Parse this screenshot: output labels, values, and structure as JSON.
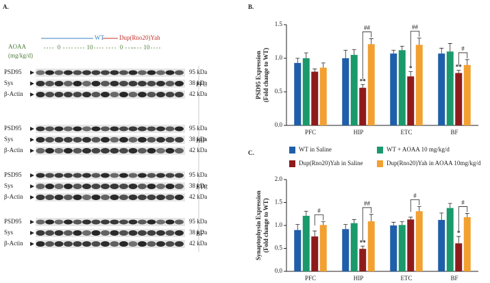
{
  "panel_labels": [
    "A.",
    "B.",
    "C."
  ],
  "blot": {
    "genotypes": [
      "WT",
      "Dup(Rno20)Yah"
    ],
    "treatment_label": "AOAA",
    "treatment_unit": "(mg/kg/d)",
    "doses": [
      "0",
      "10",
      "0",
      "10"
    ],
    "regions": [
      {
        "name": "PFC",
        "rows": [
          {
            "protein": "PSD95",
            "size": "95 kDa"
          },
          {
            "protein": "Sys",
            "size": "38 kDa"
          },
          {
            "protein": "β-Actin",
            "size": "42 kDa"
          }
        ]
      },
      {
        "name": "HIP",
        "rows": [
          {
            "protein": "PSD95",
            "size": "95 kDa"
          },
          {
            "protein": "Sys",
            "size": "38 kDa"
          },
          {
            "protein": "β-Actin",
            "size": "42 kDa"
          }
        ]
      },
      {
        "name": "ETC",
        "rows": [
          {
            "protein": "PSD95",
            "size": "95 kDa"
          },
          {
            "protein": "Sys",
            "size": "38 kDa"
          },
          {
            "protein": "β-Actin",
            "size": "42 kDa"
          }
        ]
      },
      {
        "name": "BF",
        "rows": [
          {
            "protein": "PSD95",
            "size": "95 kDa"
          },
          {
            "protein": "Sys",
            "size": "38 kDa"
          },
          {
            "protein": "β-Actin",
            "size": "42 kDa"
          }
        ]
      }
    ]
  },
  "chart_data": [
    {
      "type": "bar",
      "ylabel": [
        "PSD95 Expression",
        "(Fold change to WT)"
      ],
      "categories": [
        "PFC",
        "HIP",
        "ETC",
        "BF"
      ],
      "series": [
        {
          "color": "#1f5ea8",
          "values": [
            0.93,
            1.0,
            1.07,
            1.07
          ],
          "errors": [
            0.07,
            0.12,
            0.05,
            0.08
          ]
        },
        {
          "color": "#1a9a6c",
          "values": [
            1.0,
            1.05,
            1.12,
            1.1
          ],
          "errors": [
            0.08,
            0.08,
            0.06,
            0.12
          ]
        },
        {
          "color": "#8e1b1b",
          "values": [
            0.8,
            0.56,
            0.73,
            0.78
          ],
          "errors": [
            0.04,
            0.05,
            0.07,
            0.04
          ],
          "significance": [
            null,
            "**",
            "*",
            "**"
          ]
        },
        {
          "color": "#f2a031",
          "values": [
            0.86,
            1.21,
            1.2,
            0.9
          ],
          "errors": [
            0.07,
            0.08,
            0.1,
            0.08
          ]
        }
      ],
      "brackets": [
        null,
        "##",
        "##",
        "#"
      ],
      "ylim": [
        0,
        1.5
      ],
      "yticks": [
        {
          "value": 0,
          "label": "0.0"
        },
        0.5,
        {
          "value": 1,
          "label": "1.0"
        },
        1.5
      ]
    },
    {
      "type": "bar",
      "ylabel": [
        "Synaptophysin Expression",
        "(Fold change to WT)"
      ],
      "categories": [
        "PFC",
        "HIP",
        "ETC",
        "BF"
      ],
      "series": [
        {
          "name": "WT in Saline",
          "color": "#1f5ea8",
          "values": [
            0.9,
            0.92,
            1.0,
            1.12
          ],
          "errors": [
            0.12,
            0.1,
            0.07,
            0.15
          ]
        },
        {
          "name": "WT + AOAA 10 mg/kg/d",
          "color": "#1a9a6c",
          "values": [
            1.21,
            1.05,
            1.01,
            1.38
          ],
          "errors": [
            0.1,
            0.08,
            0.07,
            0.1
          ]
        },
        {
          "name": "Dup(Rno20)Yah in Saline",
          "color": "#8e1b1b",
          "values": [
            0.76,
            0.49,
            1.13,
            0.61
          ],
          "errors": [
            0.12,
            0.06,
            0.05,
            0.15
          ],
          "significance": [
            null,
            "**",
            null,
            "*"
          ]
        },
        {
          "name": "Dup(Rno20)Yah in AOAA 10mg/kg/d",
          "color": "#f2a031",
          "values": [
            1.01,
            1.09,
            1.31,
            1.18
          ],
          "errors": [
            0.07,
            0.15,
            0.1,
            0.08
          ]
        }
      ],
      "brackets": [
        "#",
        "##",
        "#",
        "#"
      ],
      "ylim": [
        0,
        2
      ],
      "yticks": [
        {
          "value": 0,
          "label": "0.0"
        },
        0.5,
        {
          "value": 1,
          "label": "1.0"
        },
        1.5,
        {
          "value": 2,
          "label": "2.0"
        }
      ]
    }
  ]
}
